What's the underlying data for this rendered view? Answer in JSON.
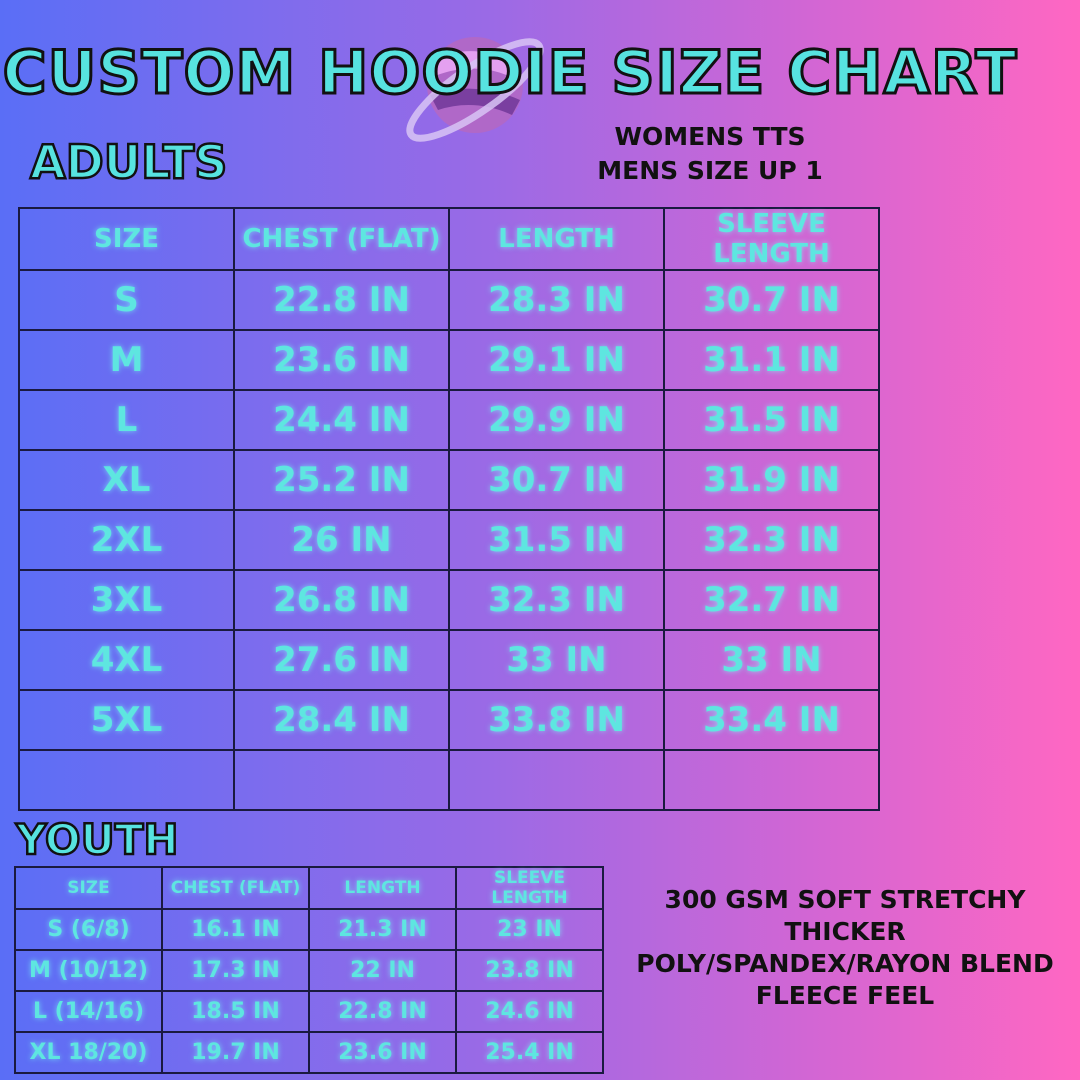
{
  "title": "CUSTOM HOODIE SIZE CHART",
  "adults": {
    "heading": "ADULTS",
    "fit_note": [
      "WOMENS TTS",
      "MENS SIZE UP 1"
    ],
    "columns": [
      "SIZE",
      "CHEST (FLAT)",
      "LENGTH",
      "SLEEVE LENGTH"
    ],
    "rows": [
      [
        "S",
        "22.8 IN",
        "28.3 IN",
        "30.7 IN"
      ],
      [
        "M",
        "23.6 IN",
        "29.1 IN",
        "31.1 IN"
      ],
      [
        "L",
        "24.4 IN",
        "29.9 IN",
        "31.5 IN"
      ],
      [
        "XL",
        "25.2 IN",
        "30.7 IN",
        "31.9 IN"
      ],
      [
        "2XL",
        "26 IN",
        "31.5 IN",
        "32.3 IN"
      ],
      [
        "3XL",
        "26.8 IN",
        "32.3 IN",
        "32.7 IN"
      ],
      [
        "4XL",
        "27.6 IN",
        "33 IN",
        "33 IN"
      ],
      [
        "5XL",
        "28.4 IN",
        "33.8 IN",
        "33.4 IN"
      ],
      [
        "",
        "",
        "",
        ""
      ]
    ]
  },
  "youth": {
    "heading": "YOUTH",
    "columns": [
      "SIZE",
      "CHEST (FLAT)",
      "LENGTH",
      "SLEEVE LENGTH"
    ],
    "rows": [
      [
        "S (6/8)",
        "16.1 IN",
        "21.3 IN",
        "23 IN"
      ],
      [
        "M (10/12)",
        "17.3 IN",
        "22 IN",
        "23.8 IN"
      ],
      [
        "L (14/16)",
        "18.5 IN",
        "22.8 IN",
        "24.6 IN"
      ],
      [
        "XL 18/20)",
        "19.7 IN",
        "23.6 IN",
        "25.4 IN"
      ]
    ]
  },
  "material_note": [
    "300 GSM SOFT STRETCHY",
    "THICKER",
    "POLY/SPANDEX/RAYON BLEND",
    "FLEECE FEEL"
  ],
  "colors": {
    "accent": "#57e3e0",
    "bg_left": "#5a6ef6",
    "bg_right": "#ff67c2"
  }
}
